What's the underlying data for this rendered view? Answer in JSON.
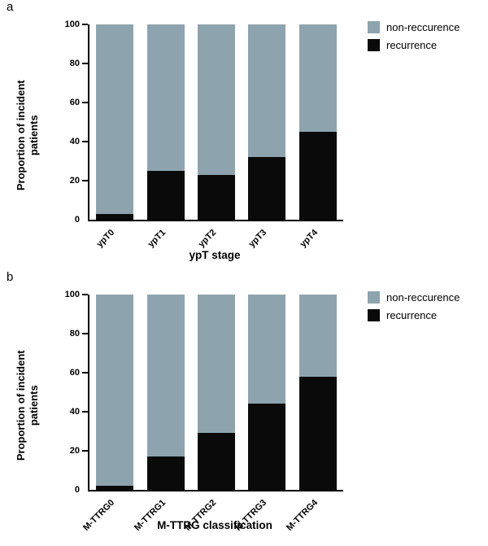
{
  "figure": {
    "panel_a_label": "a",
    "panel_b_label": "b",
    "colors": {
      "non_recurrence": "#8da4ae",
      "recurrence": "#0a0a0a"
    }
  },
  "chart_data": [
    {
      "type": "bar",
      "stacked": true,
      "panel": "a",
      "categories": [
        "ypT0",
        "ypT1",
        "ypT2",
        "ypT3",
        "ypT4"
      ],
      "series": [
        {
          "name": "recurrence",
          "color": "#0a0a0a",
          "values": [
            3,
            25,
            23,
            32,
            45
          ]
        },
        {
          "name": "non-reccurence",
          "color": "#8da4ae",
          "values": [
            97,
            75,
            77,
            68,
            55
          ]
        }
      ],
      "title": "",
      "xlabel": "ypT stage",
      "ylabel": "Proportion of incident patients",
      "ylim": [
        0,
        100
      ],
      "yticks": [
        0,
        20,
        40,
        60,
        80,
        100
      ],
      "grid": false,
      "legend_position": "top-right",
      "legend": [
        {
          "label": "non-reccurence",
          "color": "#8da4ae"
        },
        {
          "label": "recurrence",
          "color": "#0a0a0a"
        }
      ]
    },
    {
      "type": "bar",
      "stacked": true,
      "panel": "b",
      "categories": [
        "M-TTRG0",
        "M-TTRG1",
        "M-TTRG2",
        "M-TTRG3",
        "M-TTRG4"
      ],
      "series": [
        {
          "name": "recurrence",
          "color": "#0a0a0a",
          "values": [
            2,
            17,
            29,
            44,
            58
          ]
        },
        {
          "name": "non-reccurence",
          "color": "#8da4ae",
          "values": [
            98,
            83,
            71,
            56,
            42
          ]
        }
      ],
      "title": "",
      "xlabel": "M-TTRG classification",
      "ylabel": "Proportion of incident patients",
      "ylim": [
        0,
        100
      ],
      "yticks": [
        0,
        20,
        40,
        60,
        80,
        100
      ],
      "grid": false,
      "legend_position": "top-right",
      "legend": [
        {
          "label": "non-reccurence",
          "color": "#8da4ae"
        },
        {
          "label": "recurrence",
          "color": "#0a0a0a"
        }
      ]
    }
  ]
}
